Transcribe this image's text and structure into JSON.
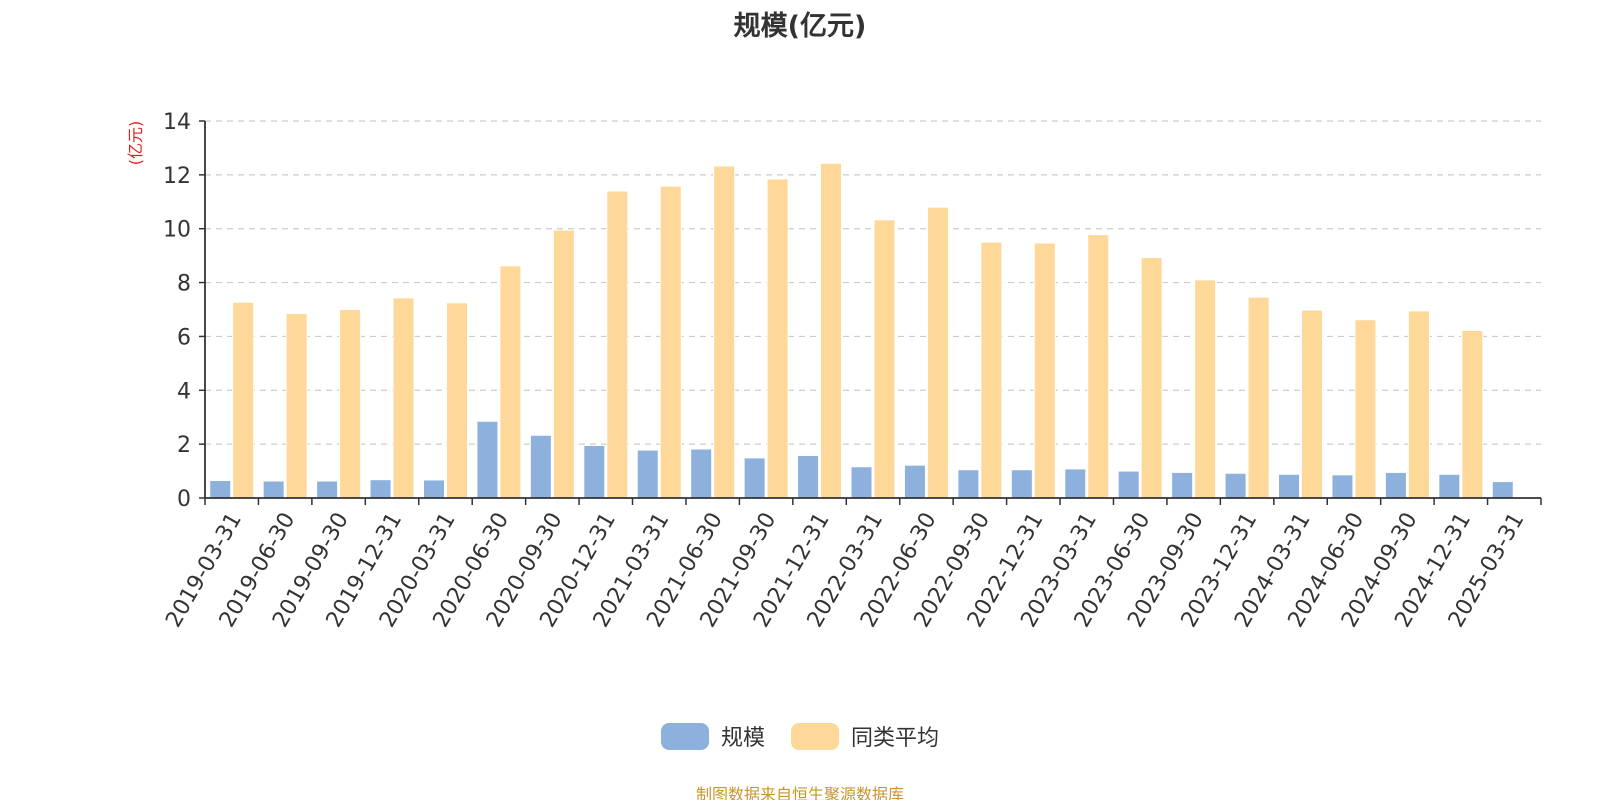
{
  "chart_data": {
    "type": "bar",
    "title": "规模(亿元)",
    "ylabel": "(亿元)",
    "xlabel": "",
    "ylim": [
      0,
      14
    ],
    "yticks": [
      0,
      2,
      4,
      6,
      8,
      10,
      12,
      14
    ],
    "grid": true,
    "legend_position": "bottom-center",
    "categories": [
      "2019-03-31",
      "2019-06-30",
      "2019-09-30",
      "2019-12-31",
      "2020-03-31",
      "2020-06-30",
      "2020-09-30",
      "2020-12-31",
      "2021-03-31",
      "2021-06-30",
      "2021-09-30",
      "2021-12-31",
      "2022-03-31",
      "2022-06-30",
      "2022-09-30",
      "2022-12-31",
      "2023-03-31",
      "2023-06-30",
      "2023-09-30",
      "2023-12-31",
      "2024-03-31",
      "2024-06-30",
      "2024-09-30",
      "2024-12-31",
      "2025-03-31"
    ],
    "series": [
      {
        "name": "规模",
        "color": "#8eb0dd",
        "values": [
          0.65,
          0.63,
          0.63,
          0.68,
          0.67,
          2.85,
          2.33,
          1.95,
          1.78,
          1.82,
          1.49,
          1.58,
          1.16,
          1.22,
          1.05,
          1.05,
          1.08,
          1.0,
          0.95,
          0.92,
          0.88,
          0.86,
          0.95,
          0.88,
          0.61
        ]
      },
      {
        "name": "同类平均",
        "color": "#fdd898",
        "values": [
          7.27,
          6.85,
          7.0,
          7.43,
          7.25,
          8.62,
          9.95,
          11.4,
          11.58,
          12.33,
          11.85,
          12.43,
          10.33,
          10.8,
          9.5,
          9.47,
          9.78,
          8.93,
          8.1,
          7.46,
          6.98,
          6.62,
          6.95,
          6.22,
          null
        ]
      }
    ]
  },
  "source_note": "制图数据来自恒生聚源数据库"
}
